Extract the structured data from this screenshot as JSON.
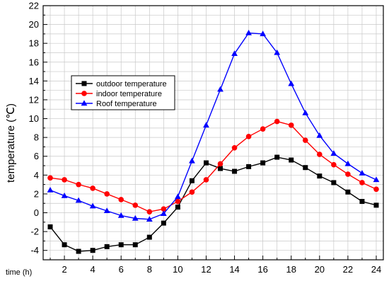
{
  "chart_data": {
    "type": "line",
    "title": "",
    "xlabel": "time (h)",
    "ylabel": "temperature (℃)",
    "xlim": [
      0.5,
      24.5
    ],
    "ylim": [
      -5,
      22
    ],
    "x": [
      1,
      2,
      3,
      4,
      5,
      6,
      7,
      8,
      9,
      10,
      11,
      12,
      13,
      14,
      15,
      16,
      17,
      18,
      19,
      20,
      21,
      22,
      23,
      24
    ],
    "x_ticks": [
      2,
      4,
      6,
      8,
      10,
      12,
      14,
      16,
      18,
      20,
      22,
      24
    ],
    "y_ticks": [
      -4,
      -2,
      0,
      2,
      4,
      6,
      8,
      10,
      12,
      14,
      16,
      18,
      20,
      22
    ],
    "grid": true,
    "legend_position": "upper-left",
    "series": [
      {
        "name": "outdoor temperature",
        "color": "#000000",
        "marker": "square",
        "values": [
          -1.5,
          -3.4,
          -4.1,
          -4.0,
          -3.6,
          -3.4,
          -3.4,
          -2.6,
          -1.1,
          0.6,
          3.4,
          5.3,
          4.7,
          4.4,
          4.9,
          5.3,
          5.9,
          5.6,
          4.8,
          3.9,
          3.2,
          2.2,
          1.2,
          0.8
        ]
      },
      {
        "name": "indoor temperature",
        "color": "#ff0000",
        "marker": "circle",
        "values": [
          3.7,
          3.5,
          3.0,
          2.6,
          2.0,
          1.4,
          0.8,
          0.1,
          0.4,
          1.2,
          2.2,
          3.5,
          5.2,
          6.9,
          8.1,
          8.9,
          9.7,
          9.3,
          7.7,
          6.2,
          5.1,
          4.1,
          3.2,
          2.5
        ]
      },
      {
        "name": "Roof temperature",
        "color": "#0000ff",
        "marker": "triangle",
        "values": [
          2.4,
          1.8,
          1.3,
          0.7,
          0.2,
          -0.3,
          -0.6,
          -0.7,
          -0.1,
          1.7,
          5.5,
          9.3,
          13.1,
          16.9,
          19.1,
          19.0,
          17.0,
          13.7,
          10.6,
          8.2,
          6.3,
          5.2,
          4.2,
          3.5
        ]
      }
    ]
  }
}
